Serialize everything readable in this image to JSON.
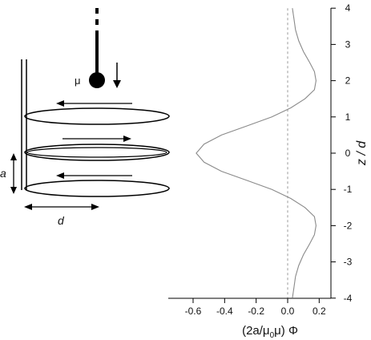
{
  "diagram": {
    "moment_label": "μ",
    "height_label": "a",
    "diameter_label": "d"
  },
  "chart_data": {
    "type": "line",
    "title": "",
    "xlabel_main": "(2a/μ",
    "xlabel_sub": "0",
    "xlabel_end": "μ) Φ",
    "ylabel": "z / d",
    "xlim": [
      -0.7,
      0.25
    ],
    "ylim": [
      -4,
      4
    ],
    "x_ticks": [
      -0.6,
      -0.4,
      -0.2,
      0.0,
      0.2
    ],
    "x_tick_labels": [
      "-0.6",
      "-0.4",
      "-0.2",
      "0.0",
      "0.2"
    ],
    "y_ticks": [
      -4,
      -3,
      -2,
      -1,
      0,
      1,
      2,
      3,
      4
    ],
    "y_tick_labels": [
      "-4",
      "-3",
      "-2",
      "-1",
      "0",
      "1",
      "2",
      "3",
      "4"
    ],
    "zero_reference_line": {
      "x": 0.0,
      "style": "dashed"
    },
    "series": [
      {
        "color": "#8a8a8a",
        "points": [
          [
            0.03,
            4.0
          ],
          [
            0.04,
            3.7
          ],
          [
            0.05,
            3.4
          ],
          [
            0.07,
            3.1
          ],
          [
            0.1,
            2.8
          ],
          [
            0.14,
            2.5
          ],
          [
            0.17,
            2.25
          ],
          [
            0.18,
            2.0
          ],
          [
            0.17,
            1.75
          ],
          [
            0.11,
            1.5
          ],
          [
            0.02,
            1.25
          ],
          [
            -0.1,
            1.0
          ],
          [
            -0.26,
            0.75
          ],
          [
            -0.42,
            0.5
          ],
          [
            -0.53,
            0.25
          ],
          [
            -0.58,
            0.0
          ],
          [
            -0.53,
            -0.25
          ],
          [
            -0.42,
            -0.5
          ],
          [
            -0.26,
            -0.75
          ],
          [
            -0.1,
            -1.0
          ],
          [
            0.02,
            -1.25
          ],
          [
            0.11,
            -1.5
          ],
          [
            0.17,
            -1.75
          ],
          [
            0.18,
            -2.0
          ],
          [
            0.17,
            -2.25
          ],
          [
            0.14,
            -2.5
          ],
          [
            0.1,
            -2.8
          ],
          [
            0.07,
            -3.1
          ],
          [
            0.05,
            -3.4
          ],
          [
            0.04,
            -3.7
          ],
          [
            0.03,
            -4.0
          ]
        ]
      }
    ]
  }
}
